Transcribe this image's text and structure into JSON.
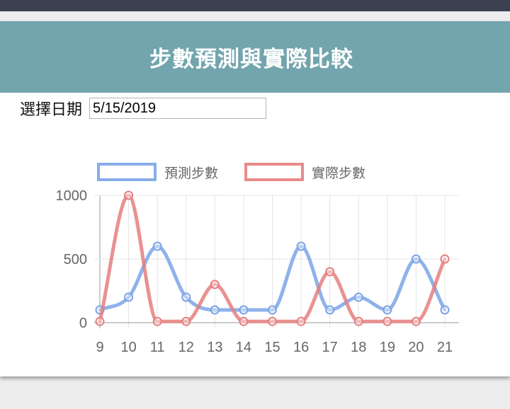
{
  "title": "步數預測與實際比較",
  "date_picker": {
    "label": "選擇日期",
    "value": "5/15/2019"
  },
  "colors": {
    "header": "#72a5ad",
    "predicted": "#7ba4e8",
    "actual": "#e67e7e"
  },
  "chart_data": {
    "type": "line",
    "x": [
      9,
      10,
      11,
      12,
      13,
      14,
      15,
      16,
      17,
      18,
      19,
      20,
      21
    ],
    "series": [
      {
        "name": "預測步數",
        "color": "#7ba4e8",
        "values": [
          100,
          200,
          600,
          200,
          100,
          100,
          100,
          600,
          100,
          200,
          100,
          500,
          100
        ]
      },
      {
        "name": "實際步數",
        "color": "#e67e7e",
        "values": [
          10,
          1000,
          10,
          10,
          300,
          10,
          10,
          10,
          400,
          10,
          10,
          10,
          500
        ]
      }
    ],
    "ylim": [
      0,
      1000
    ],
    "yticks": [
      0,
      500,
      1000
    ],
    "legend": "top",
    "grid": true
  }
}
